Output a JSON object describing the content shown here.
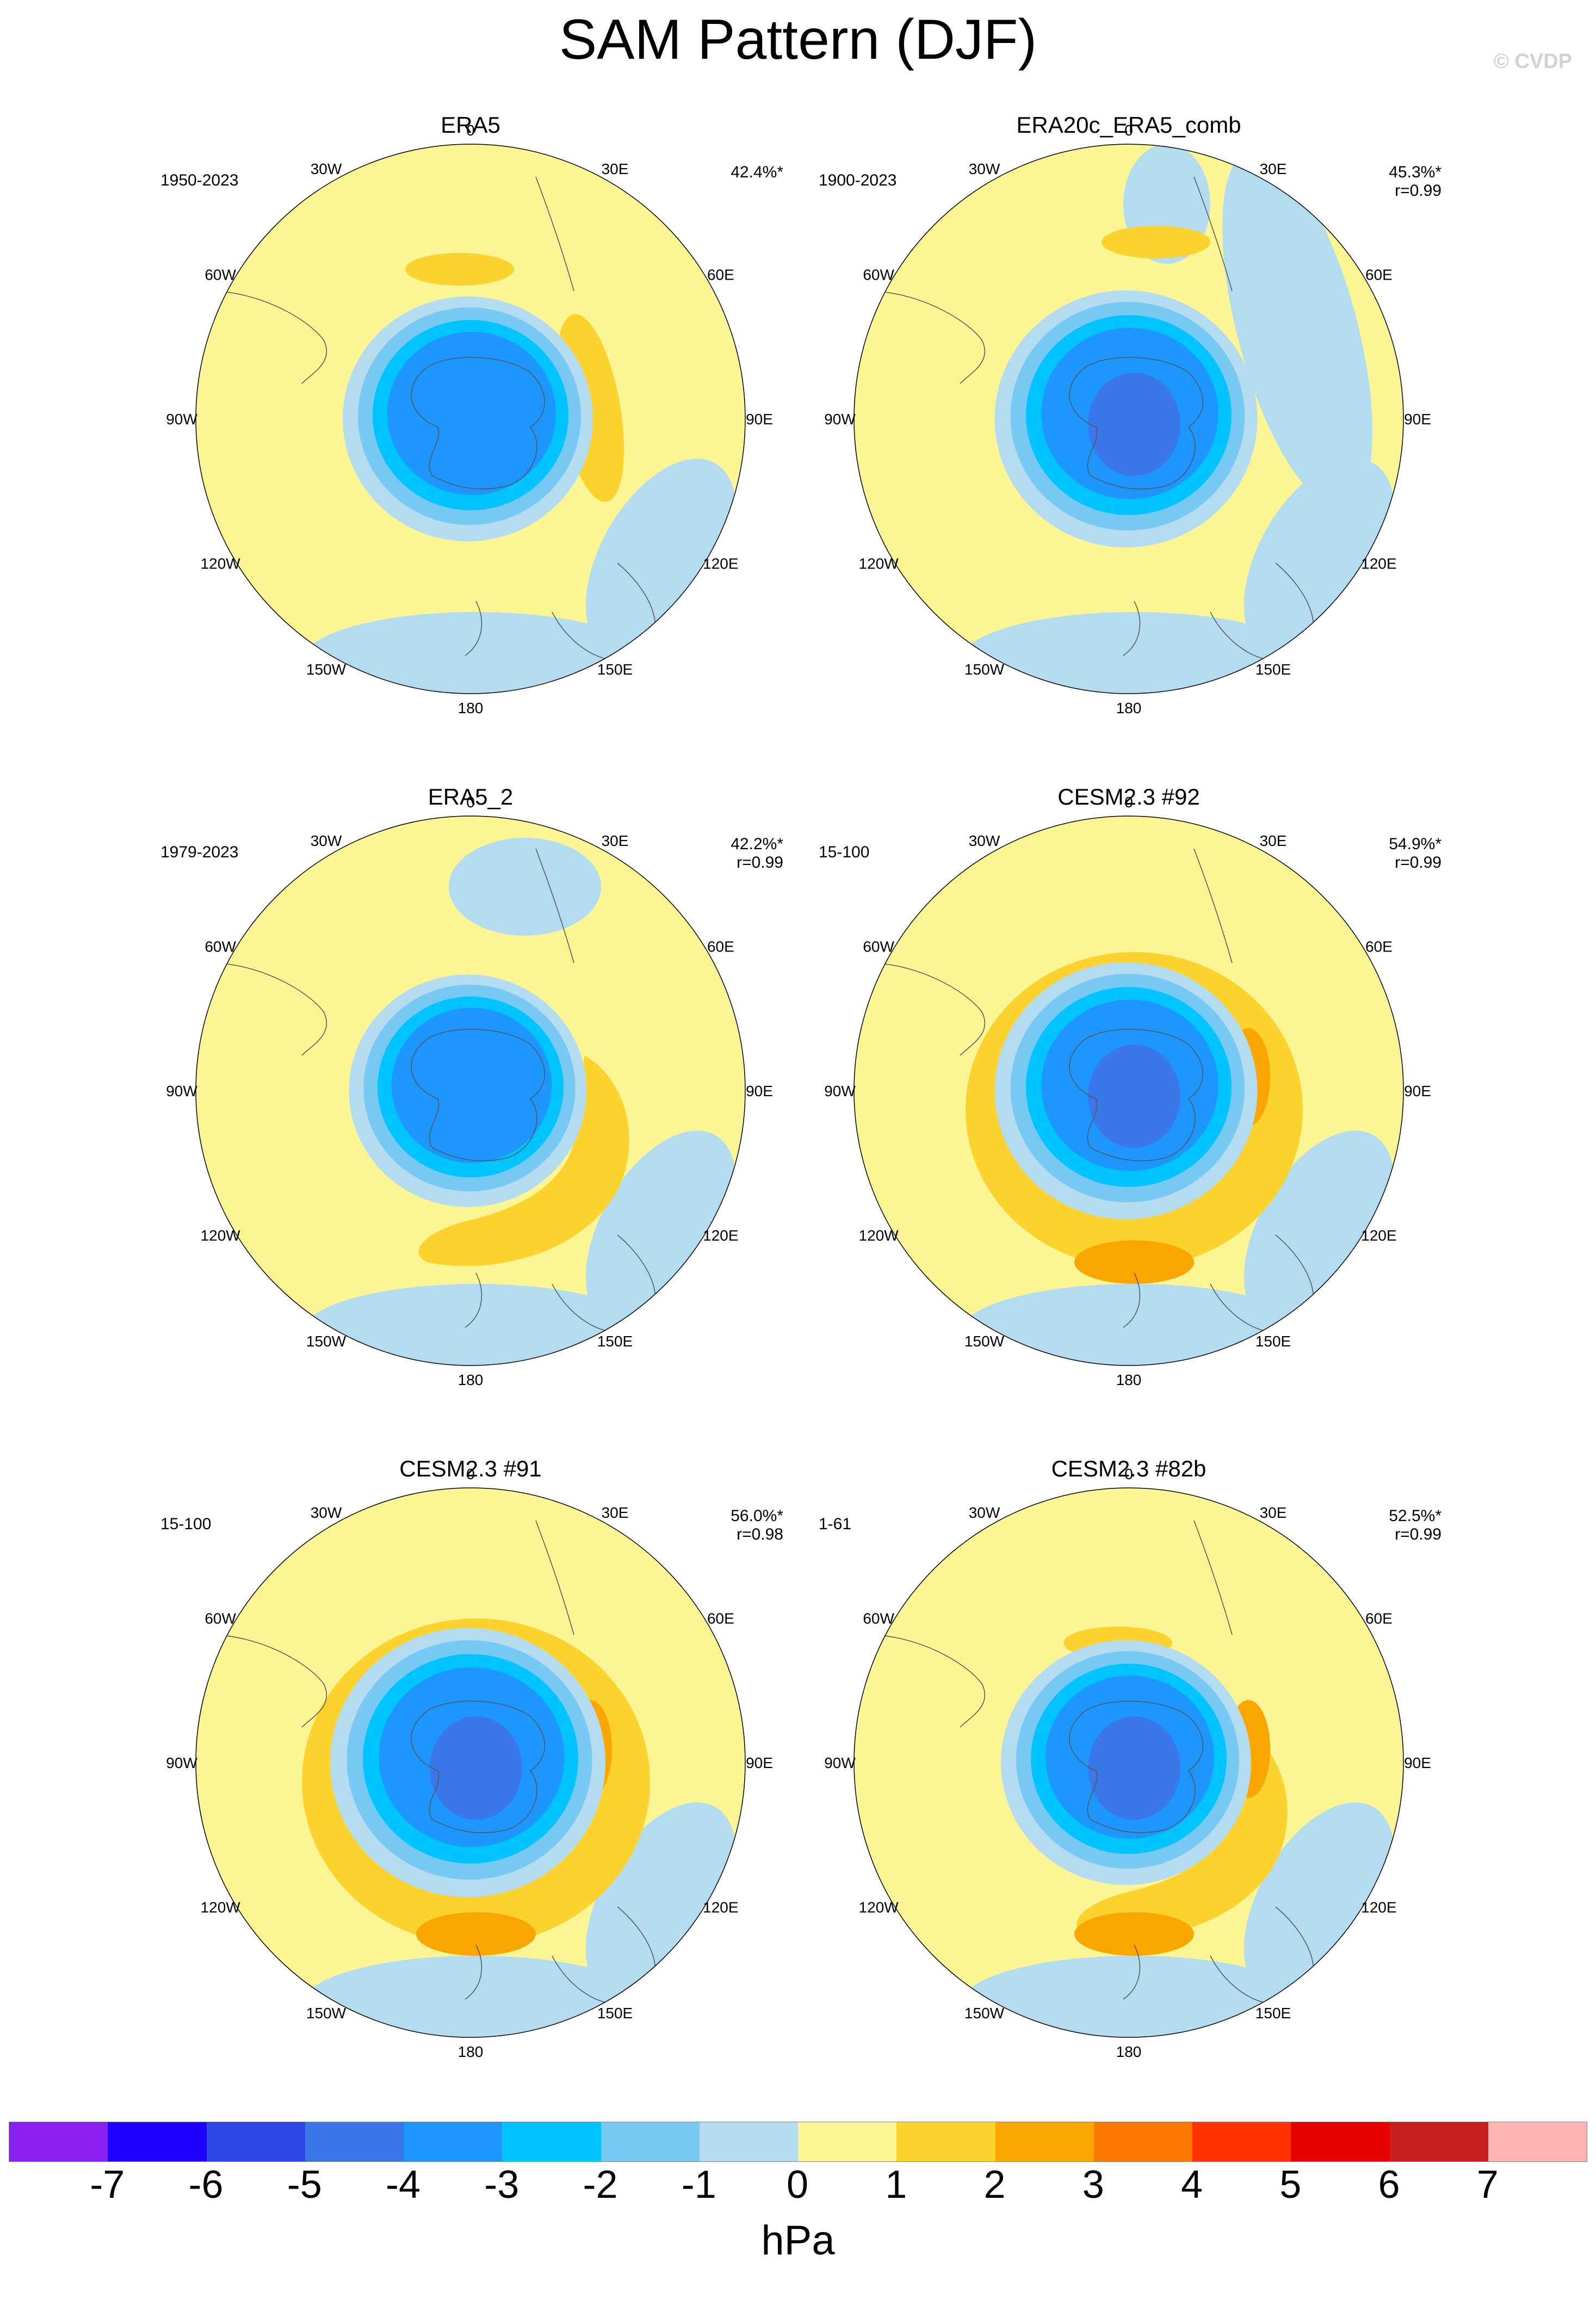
{
  "title": "SAM Pattern (DJF)",
  "credit": "© CVDP",
  "longitude_labels": [
    "0",
    "30E",
    "60E",
    "90E",
    "120E",
    "150E",
    "180",
    "150W",
    "120W",
    "90W",
    "60W",
    "30W"
  ],
  "panels": [
    {
      "name": "ERA5",
      "period": "1950-2023",
      "pct": "42.4%*",
      "r": ""
    },
    {
      "name": "ERA20c_ERA5_comb",
      "period": "1900-2023",
      "pct": "45.3%*",
      "r": "r=0.99"
    },
    {
      "name": "ERA5_2",
      "period": "1979-2023",
      "pct": "42.2%*",
      "r": "r=0.99"
    },
    {
      "name": "CESM2.3 #92",
      "period": "15-100",
      "pct": "54.9%*",
      "r": "r=0.99"
    },
    {
      "name": "CESM2.3 #91",
      "period": "15-100",
      "pct": "56.0%*",
      "r": "r=0.98"
    },
    {
      "name": "CESM2.3 #82b",
      "period": "1-61",
      "pct": "52.5%*",
      "r": "r=0.99"
    }
  ],
  "colorbar": {
    "unit": "hPa",
    "colors": [
      "#8a20f0",
      "#1e00ff",
      "#2e46e8",
      "#3a78ea",
      "#1e96ff",
      "#00c4ff",
      "#78c8f4",
      "#b4dcf0",
      "#fbf594",
      "#fcd22e",
      "#fba600",
      "#fb7800",
      "#ff3200",
      "#e60000",
      "#c81e1e",
      "#ffb4b4"
    ],
    "ticks": [
      "-7",
      "-6",
      "-5",
      "-4",
      "-3",
      "-2",
      "-1",
      "0",
      "1",
      "2",
      "3",
      "4",
      "5",
      "6",
      "7"
    ]
  }
}
